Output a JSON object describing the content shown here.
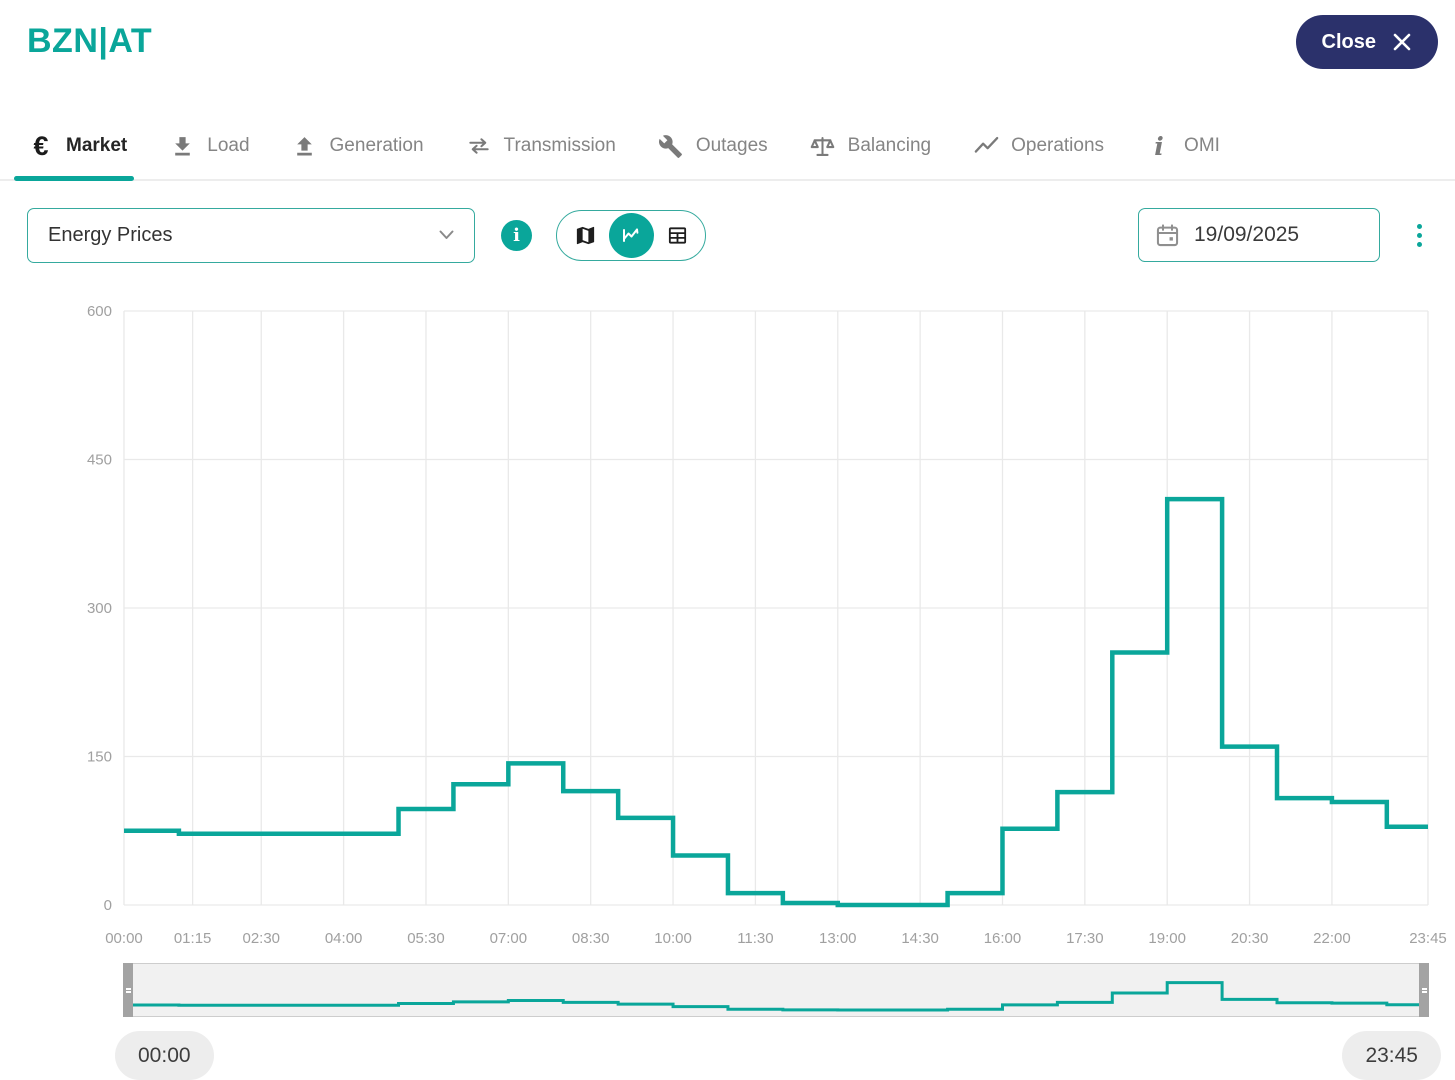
{
  "header": {
    "title": "BZN|AT",
    "close_label": "Close"
  },
  "tabs": [
    {
      "label": "Market",
      "icon": "euro-icon",
      "active": true
    },
    {
      "label": "Load",
      "icon": "download-icon",
      "active": false
    },
    {
      "label": "Generation",
      "icon": "upload-icon",
      "active": false
    },
    {
      "label": "Transmission",
      "icon": "swap-arrows-icon",
      "active": false
    },
    {
      "label": "Outages",
      "icon": "wrench-icon",
      "active": false
    },
    {
      "label": "Balancing",
      "icon": "scales-icon",
      "active": false
    },
    {
      "label": "Operations",
      "icon": "trend-icon",
      "active": false
    },
    {
      "label": "OMI",
      "icon": "italic-i-icon",
      "active": false
    }
  ],
  "controls": {
    "indicator_select": {
      "value": "Energy Prices"
    },
    "view_modes": [
      "map",
      "line-chart",
      "table"
    ],
    "active_view": "line-chart",
    "date_value": "19/09/2025"
  },
  "chart_data": {
    "type": "line",
    "step": true,
    "series": [
      {
        "name": "Energy Prices",
        "hours": [
          0,
          1,
          2,
          3,
          4,
          5,
          6,
          7,
          8,
          9,
          10,
          11,
          12,
          13,
          14,
          15,
          16,
          17,
          18,
          19,
          20,
          21,
          22,
          23
        ],
        "values": [
          75,
          72,
          72,
          72,
          72,
          97,
          122,
          143,
          115,
          88,
          50,
          12,
          2,
          0,
          0,
          12,
          77,
          114,
          255,
          410,
          160,
          108,
          104,
          79
        ]
      }
    ],
    "x_start_hour": 0,
    "x_end_hour": 23.75,
    "ylim": [
      0,
      600
    ],
    "yticks": [
      0,
      150,
      300,
      450,
      600
    ],
    "xticks": [
      {
        "hour": 0,
        "label": "00:00"
      },
      {
        "hour": 1.25,
        "label": "01:15"
      },
      {
        "hour": 2.5,
        "label": "02:30"
      },
      {
        "hour": 4,
        "label": "04:00"
      },
      {
        "hour": 5.5,
        "label": "05:30"
      },
      {
        "hour": 7,
        "label": "07:00"
      },
      {
        "hour": 8.5,
        "label": "08:30"
      },
      {
        "hour": 10,
        "label": "10:00"
      },
      {
        "hour": 11.5,
        "label": "11:30"
      },
      {
        "hour": 13,
        "label": "13:00"
      },
      {
        "hour": 14.5,
        "label": "14:30"
      },
      {
        "hour": 16,
        "label": "16:00"
      },
      {
        "hour": 17.5,
        "label": "17:30"
      },
      {
        "hour": 19,
        "label": "19:00"
      },
      {
        "hour": 20.5,
        "label": "20:30"
      },
      {
        "hour": 22,
        "label": "22:00"
      },
      {
        "hour": 23.75,
        "label": "23:45"
      }
    ],
    "grid": true,
    "line_color": "#0aa69a"
  },
  "brush": {
    "start_label": "00:00",
    "end_label": "23:45"
  },
  "colors": {
    "accent": "#0aa69a",
    "navy": "#2b316b",
    "grid": "#e9e9e9",
    "axis_label": "#a0a0a0",
    "tab_inactive": "#858585",
    "text_dark": "#2e2e2e"
  }
}
